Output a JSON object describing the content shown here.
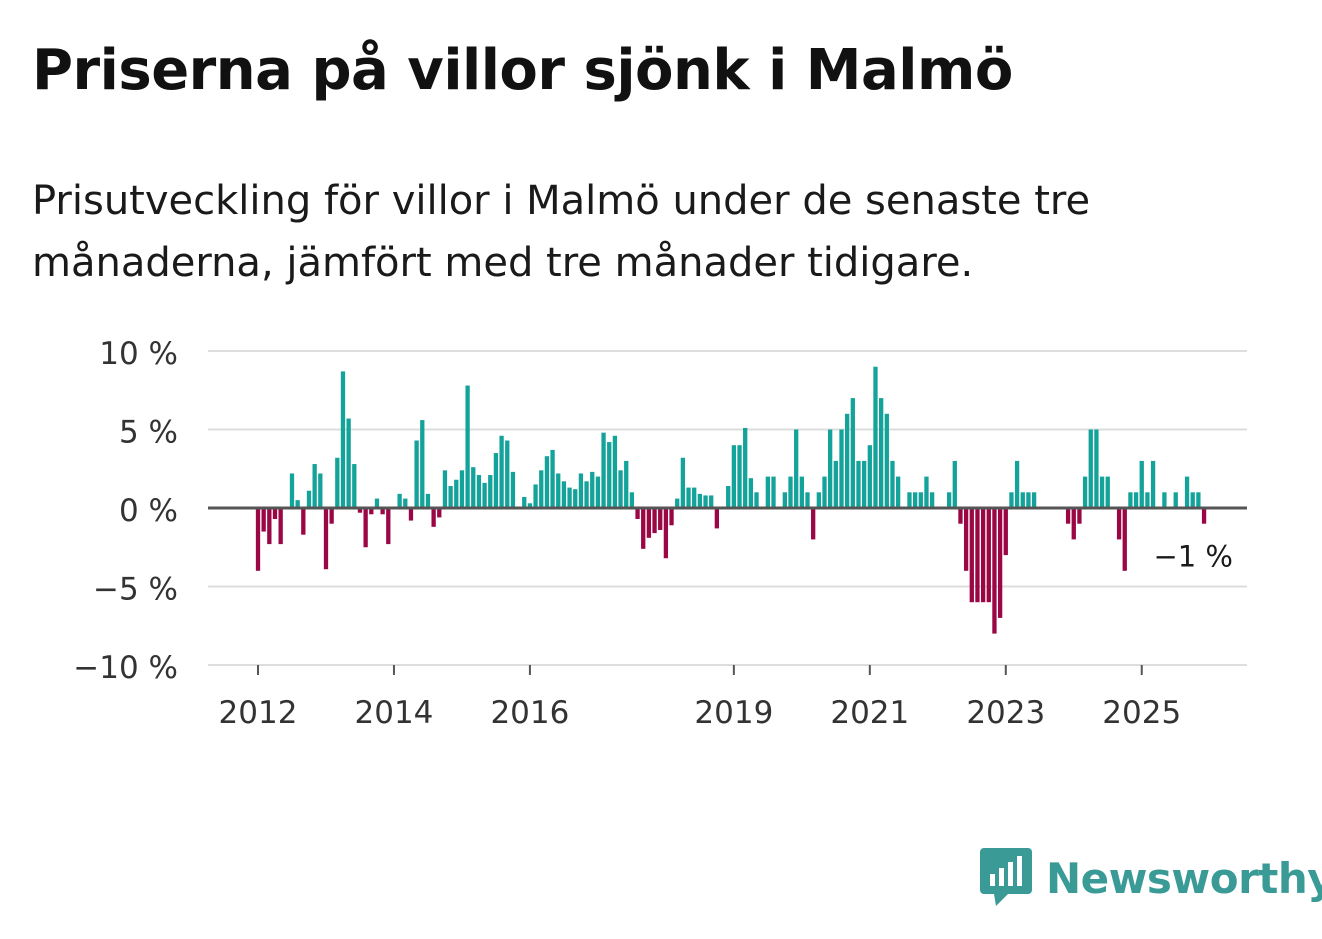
{
  "title": "Priserna på villor sjönk i Malmö",
  "subtitle": "Prisutveckling för villor i Malmö under de senaste tre månaderna, jämfört med tre månader tidigare.",
  "brand": "Newsworthy",
  "colors": {
    "positive": "#14a39b",
    "negative": "#9b0645",
    "brand": "#3a9a96",
    "grid": "#dddddd",
    "zero": "#555555"
  },
  "chart_data": {
    "type": "bar",
    "title": "Priserna på villor sjönk i Malmö",
    "xlabel": "",
    "ylabel": "",
    "unit": "%",
    "ylim": [
      -10,
      10
    ],
    "yticks": [
      {
        "value": 10,
        "label": "10 %"
      },
      {
        "value": 5,
        "label": "5 %"
      },
      {
        "value": 0,
        "label": "0 %"
      },
      {
        "value": -5,
        "label": "−5 %"
      },
      {
        "value": -10,
        "label": "−10 %"
      }
    ],
    "start": "2012-01",
    "xticks": [
      {
        "month_index": 0,
        "label": "2012"
      },
      {
        "month_index": 24,
        "label": "2014"
      },
      {
        "month_index": 48,
        "label": "2016"
      },
      {
        "month_index": 84,
        "label": "2019"
      },
      {
        "month_index": 108,
        "label": "2021"
      },
      {
        "month_index": 132,
        "label": "2023"
      },
      {
        "month_index": 156,
        "label": "2025"
      }
    ],
    "last_value_label": "−1 %",
    "values": [
      -4.0,
      -1.5,
      -2.3,
      -0.7,
      -2.3,
      0,
      2.2,
      0.5,
      -1.7,
      1.1,
      2.8,
      2.2,
      -3.9,
      -1.0,
      3.2,
      8.7,
      5.7,
      2.8,
      -0.3,
      -2.5,
      -0.4,
      0.6,
      -0.4,
      -2.3,
      0,
      0.9,
      0.6,
      -0.8,
      4.3,
      5.6,
      0.9,
      -1.2,
      -0.6,
      2.4,
      1.4,
      1.8,
      2.4,
      7.8,
      2.6,
      2.1,
      1.6,
      2.1,
      3.5,
      4.6,
      4.3,
      2.3,
      0,
      0.7,
      0.3,
      1.5,
      2.4,
      3.3,
      3.7,
      2.2,
      1.7,
      1.3,
      1.2,
      2.2,
      1.7,
      2.3,
      2.0,
      4.8,
      4.2,
      4.6,
      2.4,
      3.0,
      1.0,
      -0.7,
      -2.6,
      -1.9,
      -1.6,
      -1.4,
      -3.2,
      -1.1,
      0.6,
      3.2,
      1.3,
      1.3,
      0.9,
      0.8,
      0.8,
      -1.3,
      0,
      1.4,
      4.0,
      4.0,
      5.1,
      1.9,
      1.0,
      0,
      2.0,
      2.0,
      0,
      1.0,
      2.0,
      5.0,
      2.0,
      1.0,
      -2.0,
      1.0,
      2.0,
      5.0,
      3.0,
      5.0,
      6.0,
      7.0,
      3.0,
      3.0,
      4.0,
      9.0,
      7.0,
      6.0,
      3.0,
      2.0,
      0,
      1.0,
      1.0,
      1.0,
      2.0,
      1.0,
      0,
      0,
      1.0,
      3.0,
      -1.0,
      -4.0,
      -6.0,
      -6.0,
      -6.0,
      -6.0,
      -8.0,
      -7.0,
      -3.0,
      1.0,
      3.0,
      1.0,
      1.0,
      1.0,
      0,
      0,
      0,
      0,
      0,
      -1.0,
      -2.0,
      -1.0,
      2.0,
      5.0,
      5.0,
      2.0,
      2.0,
      0,
      -2.0,
      -4.0,
      1.0,
      1.0,
      3.0,
      1.0,
      3.0,
      0,
      1.0,
      0,
      1.0,
      0,
      2.0,
      1.0,
      1.0,
      -1.0
    ]
  }
}
